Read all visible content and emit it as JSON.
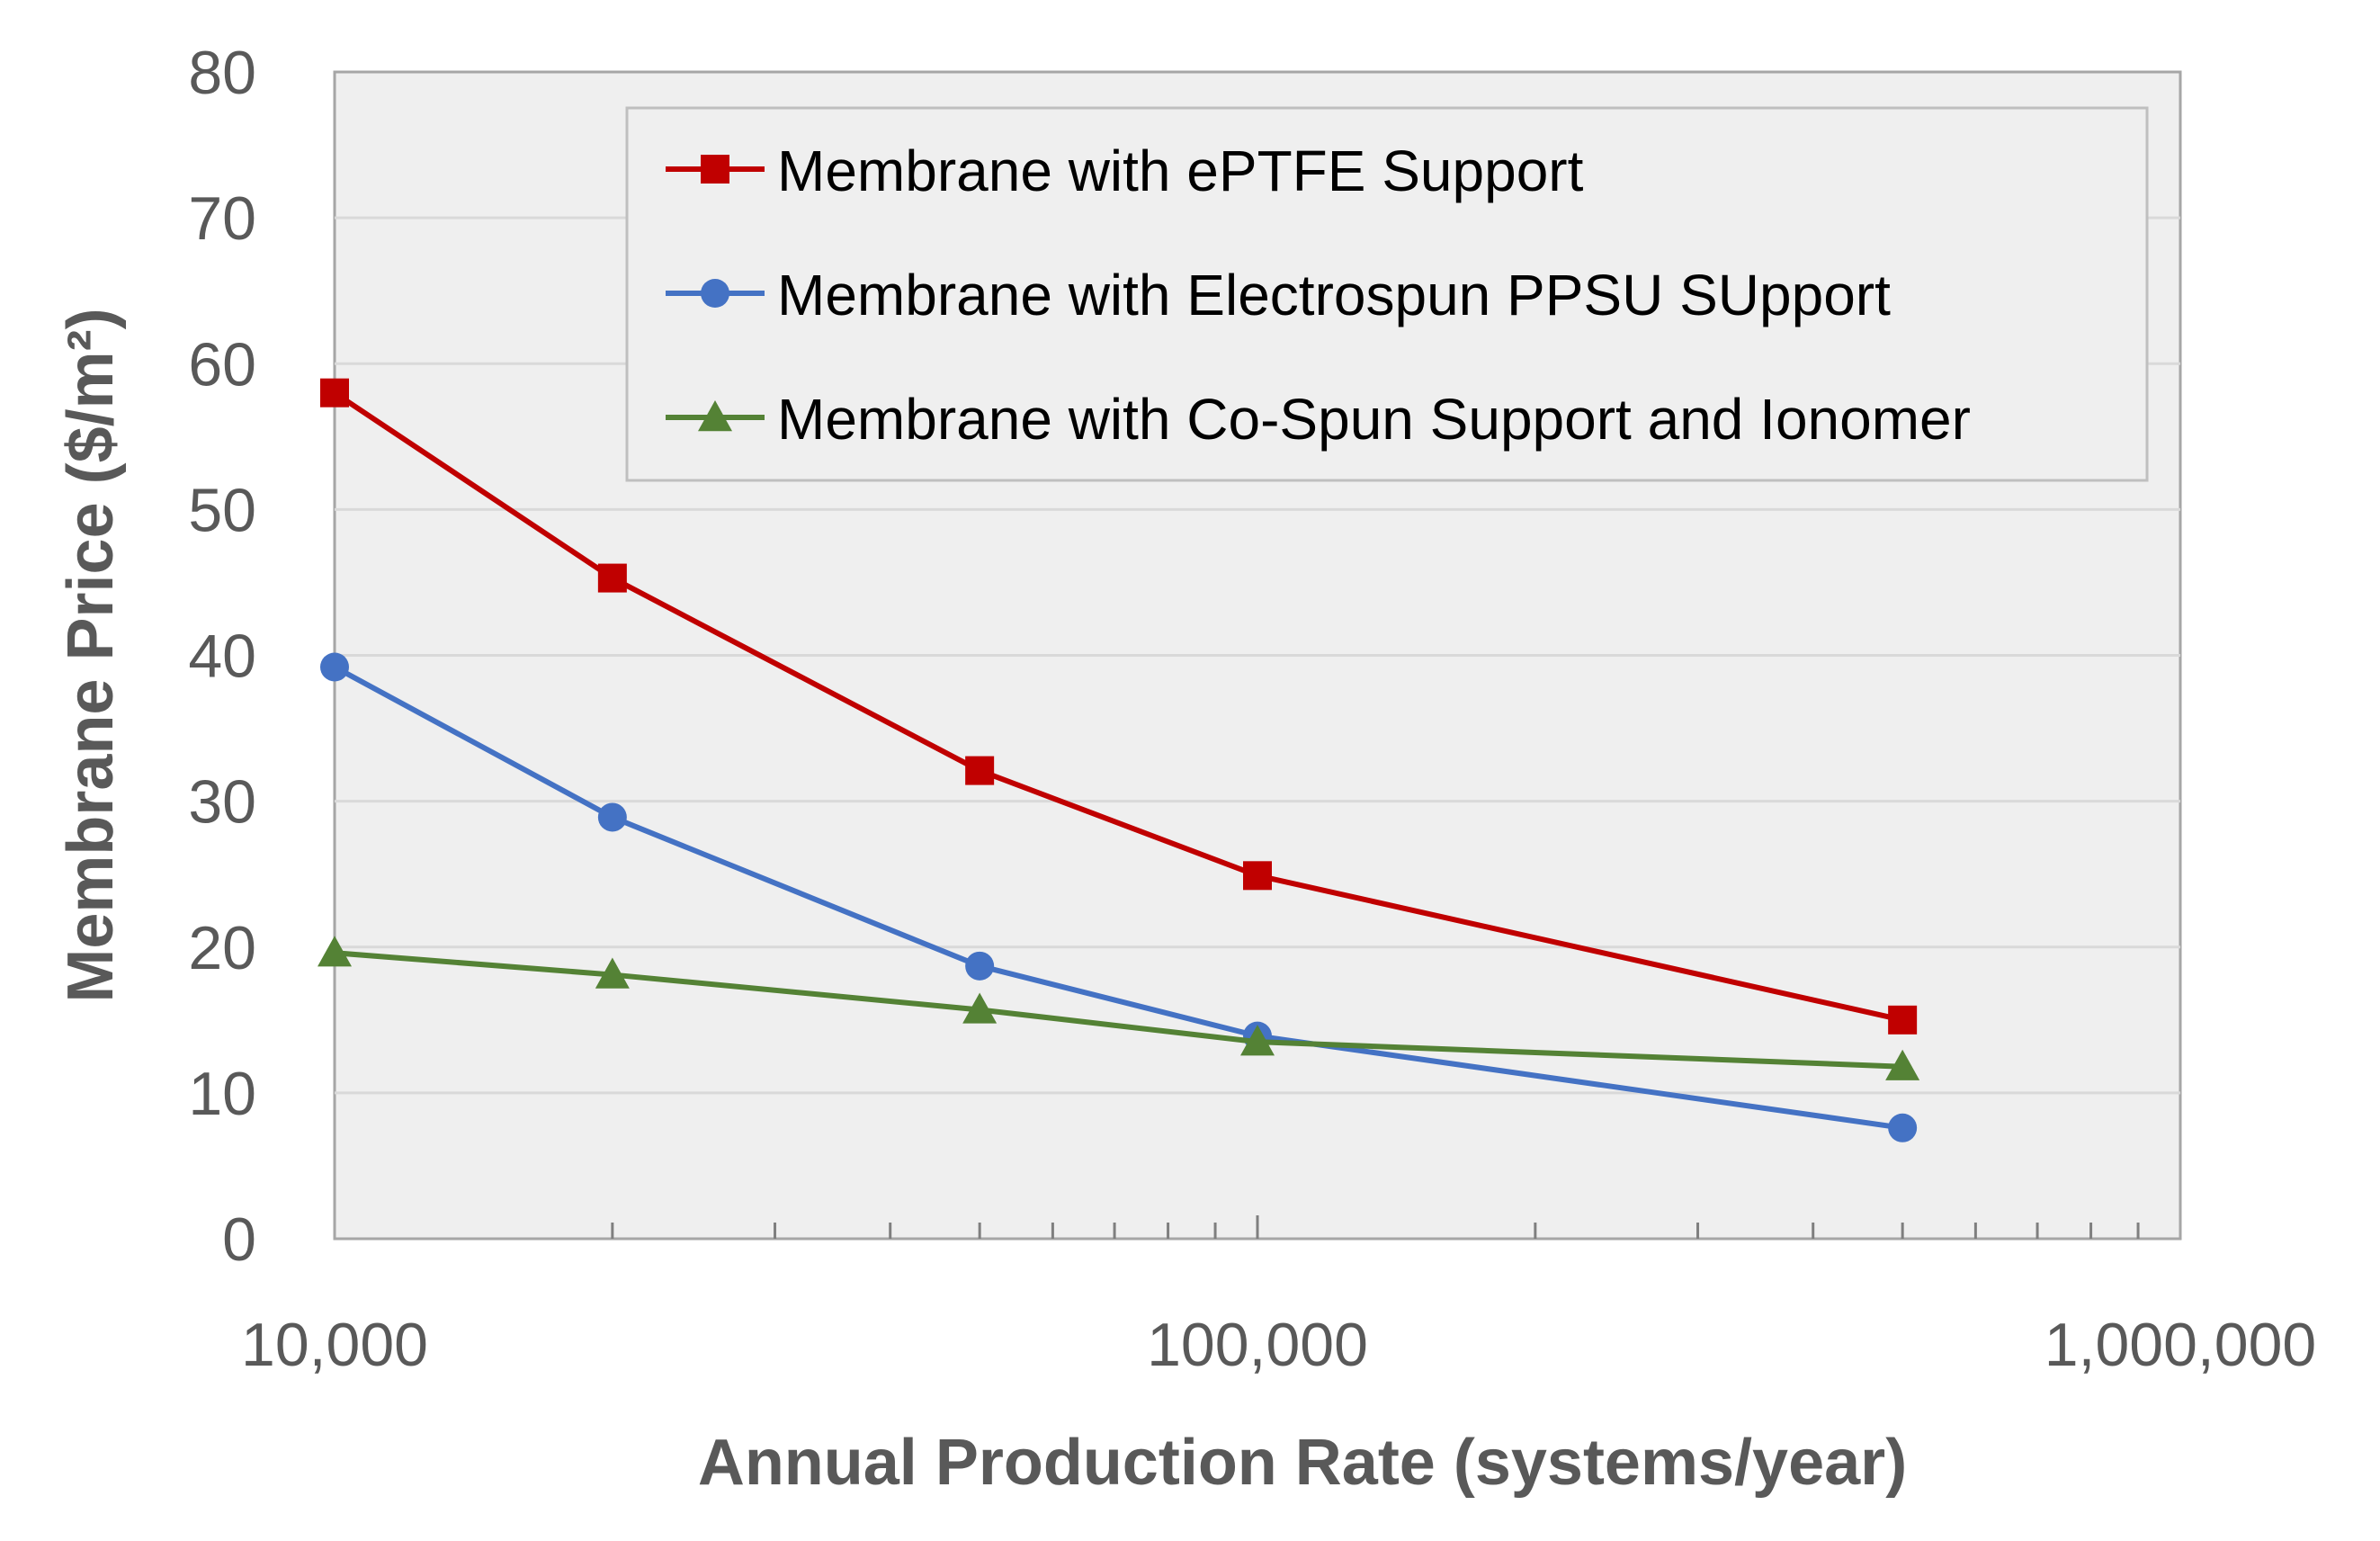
{
  "chart_data": {
    "type": "line",
    "title": "",
    "xlabel": "Annual Production Rate (systems/year)",
    "ylabel": "Membrane Price ($/m²)",
    "x_scale": "log",
    "xlim": [
      10000,
      1000000
    ],
    "ylim": [
      0,
      80
    ],
    "x_ticks": [
      10000,
      100000,
      1000000
    ],
    "x_tick_labels": [
      "10,000",
      "100,000",
      "1,000,000"
    ],
    "y_ticks": [
      0,
      10,
      20,
      30,
      40,
      50,
      60,
      70,
      80
    ],
    "y_tick_labels": [
      "0",
      "10",
      "20",
      "30",
      "40",
      "50",
      "60",
      "70",
      "80"
    ],
    "x": [
      10000,
      20000,
      50000,
      100000,
      500000
    ],
    "series": [
      {
        "name": "Membrane with ePTFE Support",
        "values": [
          58,
          45.3,
          32.1,
          24.9,
          15
        ],
        "color": "#c00000",
        "marker": "square"
      },
      {
        "name": "Membrane with Electrospun PPSU SUpport",
        "values": [
          39.2,
          28.9,
          18.7,
          13.9,
          7.6
        ],
        "color": "#4472c4",
        "marker": "circle"
      },
      {
        "name": "Membrane with Co-Spun Support and Ionomer",
        "values": [
          19.6,
          18.1,
          15.7,
          13.5,
          11.8
        ],
        "color": "#548235",
        "marker": "triangle"
      }
    ],
    "grid": true,
    "legend_position": "top-right"
  }
}
